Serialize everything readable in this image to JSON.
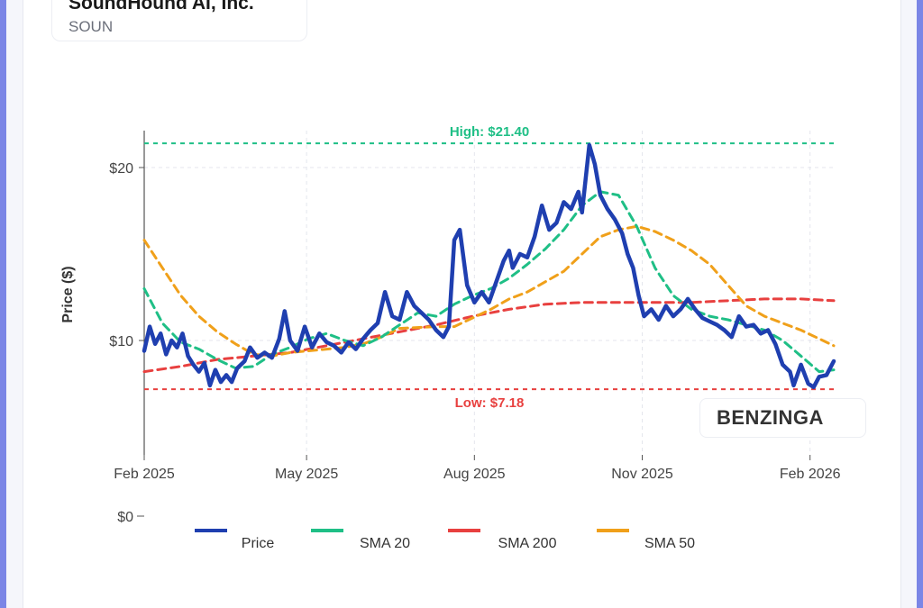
{
  "header": {
    "company": "SoundHound AI, Inc.",
    "ticker": "SOUN"
  },
  "watermark": "BENZINGA",
  "colors": {
    "price": "#1f3fb0",
    "sma20": "#1fbf86",
    "sma200": "#e8403f",
    "sma50": "#f0a01a"
  },
  "chart_data": {
    "type": "line",
    "ylabel": "Price ($)",
    "y_ticks": [
      {
        "value": 20,
        "label": "$20"
      },
      {
        "value": 10,
        "label": "$10"
      },
      {
        "value": 0,
        "label": "$0"
      }
    ],
    "x_ticks": [
      {
        "label": "Feb 2025",
        "t": 0
      },
      {
        "label": "May 2025",
        "t": 89
      },
      {
        "label": "Aug 2025",
        "t": 181
      },
      {
        "label": "Nov 2025",
        "t": 273
      },
      {
        "label": "Feb 2026",
        "t": 365
      }
    ],
    "high": {
      "value": 21.4,
      "label": "High: $21.40"
    },
    "low": {
      "value": 7.18,
      "label": "Low: $7.18"
    },
    "legend": [
      "Price",
      "SMA 20",
      "SMA 200",
      "SMA 50"
    ],
    "series": [
      {
        "name": "Price",
        "key": "price",
        "points": [
          [
            0,
            9.4
          ],
          [
            3,
            10.8
          ],
          [
            6,
            9.8
          ],
          [
            9,
            10.4
          ],
          [
            12,
            9.2
          ],
          [
            15,
            10.0
          ],
          [
            18,
            9.6
          ],
          [
            21,
            10.4
          ],
          [
            24,
            9.1
          ],
          [
            27,
            8.6
          ],
          [
            30,
            8.2
          ],
          [
            33,
            8.7
          ],
          [
            36,
            7.4
          ],
          [
            39,
            8.3
          ],
          [
            42,
            7.6
          ],
          [
            45,
            8.0
          ],
          [
            48,
            7.6
          ],
          [
            51,
            8.4
          ],
          [
            55,
            8.8
          ],
          [
            58,
            9.6
          ],
          [
            62,
            9.0
          ],
          [
            66,
            9.3
          ],
          [
            70,
            9.0
          ],
          [
            74,
            10.1
          ],
          [
            77,
            11.7
          ],
          [
            80,
            10.0
          ],
          [
            84,
            9.4
          ],
          [
            88,
            10.8
          ],
          [
            92,
            9.6
          ],
          [
            96,
            10.4
          ],
          [
            100,
            9.9
          ],
          [
            104,
            9.7
          ],
          [
            108,
            9.3
          ],
          [
            112,
            9.9
          ],
          [
            116,
            9.5
          ],
          [
            120,
            10.1
          ],
          [
            124,
            10.6
          ],
          [
            128,
            11.0
          ],
          [
            132,
            12.8
          ],
          [
            136,
            11.4
          ],
          [
            140,
            11.2
          ],
          [
            144,
            12.8
          ],
          [
            148,
            12.0
          ],
          [
            152,
            11.6
          ],
          [
            156,
            11.2
          ],
          [
            160,
            10.6
          ],
          [
            164,
            10.2
          ],
          [
            167,
            10.8
          ],
          [
            170,
            15.8
          ],
          [
            173,
            16.4
          ],
          [
            177,
            13.2
          ],
          [
            181,
            12.2
          ],
          [
            185,
            12.8
          ],
          [
            189,
            12.2
          ],
          [
            193,
            13.4
          ],
          [
            197,
            14.6
          ],
          [
            200,
            15.2
          ],
          [
            202,
            14.2
          ],
          [
            206,
            15.0
          ],
          [
            210,
            14.8
          ],
          [
            214,
            16.0
          ],
          [
            218,
            17.8
          ],
          [
            222,
            16.4
          ],
          [
            226,
            16.8
          ],
          [
            230,
            18.0
          ],
          [
            234,
            17.6
          ],
          [
            238,
            18.6
          ],
          [
            240,
            17.4
          ],
          [
            244,
            21.3
          ],
          [
            247,
            20.2
          ],
          [
            250,
            18.4
          ],
          [
            254,
            17.6
          ],
          [
            258,
            17.0
          ],
          [
            262,
            16.2
          ],
          [
            265,
            15.0
          ],
          [
            268,
            14.2
          ],
          [
            271,
            12.6
          ],
          [
            274,
            11.4
          ],
          [
            278,
            11.8
          ],
          [
            282,
            11.2
          ],
          [
            286,
            12.0
          ],
          [
            290,
            11.4
          ],
          [
            294,
            11.8
          ],
          [
            298,
            12.4
          ],
          [
            302,
            11.8
          ],
          [
            306,
            11.3
          ],
          [
            310,
            11.1
          ],
          [
            314,
            10.9
          ],
          [
            318,
            10.6
          ],
          [
            322,
            10.2
          ],
          [
            326,
            11.4
          ],
          [
            330,
            10.8
          ],
          [
            334,
            10.9
          ],
          [
            338,
            10.4
          ],
          [
            342,
            10.6
          ],
          [
            346,
            9.8
          ],
          [
            350,
            8.6
          ],
          [
            354,
            8.2
          ],
          [
            356,
            7.4
          ],
          [
            360,
            8.6
          ],
          [
            364,
            7.5
          ],
          [
            367,
            7.3
          ],
          [
            370,
            7.9
          ],
          [
            374,
            8.0
          ],
          [
            378,
            8.8
          ]
        ]
      },
      {
        "name": "SMA 20",
        "key": "sma20",
        "points": [
          [
            0,
            13.0
          ],
          [
            10,
            11.0
          ],
          [
            20,
            9.9
          ],
          [
            30,
            9.5
          ],
          [
            40,
            8.9
          ],
          [
            50,
            8.4
          ],
          [
            60,
            8.5
          ],
          [
            70,
            9.2
          ],
          [
            80,
            9.6
          ],
          [
            90,
            10.1
          ],
          [
            100,
            10.4
          ],
          [
            110,
            10.0
          ],
          [
            120,
            9.7
          ],
          [
            130,
            10.2
          ],
          [
            140,
            10.9
          ],
          [
            150,
            11.6
          ],
          [
            160,
            11.4
          ],
          [
            170,
            12.1
          ],
          [
            180,
            12.6
          ],
          [
            190,
            13.0
          ],
          [
            200,
            13.6
          ],
          [
            210,
            14.4
          ],
          [
            220,
            15.3
          ],
          [
            230,
            16.4
          ],
          [
            240,
            17.8
          ],
          [
            250,
            18.6
          ],
          [
            260,
            18.4
          ],
          [
            270,
            16.6
          ],
          [
            280,
            14.2
          ],
          [
            290,
            12.6
          ],
          [
            300,
            11.8
          ],
          [
            310,
            11.4
          ],
          [
            320,
            11.2
          ],
          [
            330,
            10.9
          ],
          [
            340,
            10.6
          ],
          [
            350,
            10.0
          ],
          [
            360,
            9.1
          ],
          [
            370,
            8.2
          ],
          [
            378,
            8.3
          ]
        ]
      },
      {
        "name": "SMA 200",
        "key": "sma200",
        "points": [
          [
            0,
            8.2
          ],
          [
            20,
            8.5
          ],
          [
            40,
            8.9
          ],
          [
            60,
            9.1
          ],
          [
            80,
            9.3
          ],
          [
            100,
            9.7
          ],
          [
            120,
            10.1
          ],
          [
            140,
            10.5
          ],
          [
            160,
            10.9
          ],
          [
            180,
            11.4
          ],
          [
            200,
            11.8
          ],
          [
            220,
            12.1
          ],
          [
            240,
            12.2
          ],
          [
            260,
            12.2
          ],
          [
            280,
            12.2
          ],
          [
            300,
            12.2
          ],
          [
            320,
            12.3
          ],
          [
            340,
            12.4
          ],
          [
            360,
            12.4
          ],
          [
            378,
            12.3
          ]
        ]
      },
      {
        "name": "SMA 50",
        "key": "sma50",
        "points": [
          [
            0,
            15.8
          ],
          [
            10,
            14.2
          ],
          [
            20,
            12.6
          ],
          [
            30,
            11.4
          ],
          [
            40,
            10.5
          ],
          [
            50,
            9.8
          ],
          [
            60,
            9.2
          ],
          [
            70,
            9.1
          ],
          [
            80,
            9.3
          ],
          [
            90,
            9.4
          ],
          [
            100,
            9.5
          ],
          [
            110,
            9.6
          ],
          [
            120,
            9.8
          ],
          [
            130,
            10.2
          ],
          [
            140,
            10.7
          ],
          [
            160,
            10.8
          ],
          [
            170,
            10.8
          ],
          [
            180,
            11.3
          ],
          [
            190,
            11.8
          ],
          [
            200,
            12.4
          ],
          [
            210,
            12.8
          ],
          [
            220,
            13.4
          ],
          [
            230,
            14.0
          ],
          [
            240,
            15.0
          ],
          [
            250,
            16.0
          ],
          [
            260,
            16.4
          ],
          [
            270,
            16.6
          ],
          [
            280,
            16.3
          ],
          [
            290,
            15.8
          ],
          [
            300,
            15.2
          ],
          [
            310,
            14.4
          ],
          [
            320,
            13.2
          ],
          [
            330,
            12.0
          ],
          [
            340,
            11.4
          ],
          [
            350,
            11.0
          ],
          [
            360,
            10.6
          ],
          [
            370,
            10.1
          ],
          [
            378,
            9.7
          ]
        ]
      }
    ]
  }
}
